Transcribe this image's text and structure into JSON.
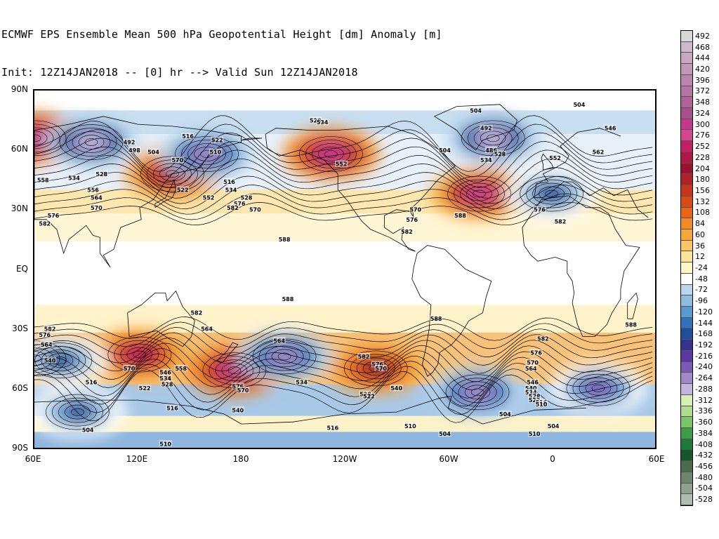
{
  "title": {
    "line1": "ECMWF EPS Ensemble Mean 500 hPa Geopotential Height [dm] Anomaly [m]",
    "line2": "Init: 12Z14JAN2018 -- [0] hr --> Valid Sun 12Z14JAN2018"
  },
  "latitude_labels": [
    "90N",
    "60N",
    "30N",
    "EQ",
    "30S",
    "60S",
    "90S"
  ],
  "longitude_labels": [
    "60E",
    "120E",
    "180",
    "120W",
    "60W",
    "0",
    "60E"
  ],
  "colorbar": {
    "labels": [
      "492",
      "468",
      "444",
      "420",
      "396",
      "372",
      "348",
      "324",
      "300",
      "276",
      "252",
      "228",
      "204",
      "180",
      "156",
      "132",
      "108",
      "84",
      "60",
      "36",
      "12",
      "-24",
      "-48",
      "-72",
      "-96",
      "-120",
      "-144",
      "-168",
      "-192",
      "-216",
      "-240",
      "-264",
      "-288",
      "-312",
      "-336",
      "-360",
      "-384",
      "-408",
      "-432",
      "-456",
      "-480",
      "-504",
      "-528"
    ],
    "colors": [
      "#d8d8d8",
      "#ceb9c9",
      "#c8a8c0",
      "#c298b8",
      "#bb86ae",
      "#b574a4",
      "#b06398",
      "#a8508a",
      "#c13b8a",
      "#d4478e",
      "#c51f63",
      "#ad1844",
      "#9c1232",
      "#b02224",
      "#c8341c",
      "#d84a16",
      "#e8641a",
      "#f28a26",
      "#f6a83a",
      "#f9c662",
      "#fbe49a",
      "#fff7c6",
      "#ffffff",
      "#b8d6ee",
      "#8fbde0",
      "#5a9ad0",
      "#2f72b8",
      "#1f4f9c",
      "#36338c",
      "#5a3aa0",
      "#7a5ab4",
      "#a089c6",
      "#c2b6dc",
      "#d6eeb8",
      "#b0dc8e",
      "#7cc46a",
      "#3c9c4a",
      "#1e7a3a",
      "#14582c",
      "#4c6a4c",
      "#6e866e",
      "#8ea08e",
      "#b0bcb0"
    ]
  },
  "anomaly_features": [
    {
      "kind": "positive",
      "anomaly_m": 300,
      "lon": -128,
      "lat": 58
    },
    {
      "kind": "positive",
      "anomaly_m": 280,
      "lon": -42,
      "lat": 38
    },
    {
      "kind": "positive",
      "anomaly_m": 300,
      "lon": 60,
      "lat": 66
    },
    {
      "kind": "positive",
      "anomaly_m": 220,
      "lon": 140,
      "lat": 48
    },
    {
      "kind": "positive",
      "anomaly_m": 240,
      "lon": 121,
      "lat": -43
    },
    {
      "kind": "positive",
      "anomaly_m": 300,
      "lon": 176,
      "lat": -51
    },
    {
      "kind": "positive",
      "anomaly_m": 200,
      "lon": -102,
      "lat": -50
    },
    {
      "kind": "positive",
      "anomaly_m": 160,
      "lon": 60,
      "lat": -45
    },
    {
      "kind": "negative",
      "anomaly_m": -300,
      "lon": 93,
      "lat": 64
    },
    {
      "kind": "negative",
      "anomaly_m": -260,
      "lon": 160,
      "lat": 58
    },
    {
      "kind": "negative",
      "anomaly_m": -300,
      "lon": -34,
      "lat": 66
    },
    {
      "kind": "negative",
      "anomaly_m": -180,
      "lon": 0,
      "lat": 38
    },
    {
      "kind": "negative",
      "anomaly_m": -260,
      "lon": -155,
      "lat": -44
    },
    {
      "kind": "negative",
      "anomaly_m": -260,
      "lon": -43,
      "lat": -62
    },
    {
      "kind": "negative",
      "anomaly_m": -240,
      "lon": 27,
      "lat": -60
    },
    {
      "kind": "negative",
      "anomaly_m": -180,
      "lon": 85,
      "lat": -72
    },
    {
      "kind": "negative",
      "anomaly_m": -160,
      "lon": 75,
      "lat": -46
    }
  ],
  "contour_labels": [
    {
      "text": "528",
      "lon": -137,
      "lat": 75
    },
    {
      "text": "534",
      "lon": -133,
      "lat": 74
    },
    {
      "text": "492",
      "lon": 115,
      "lat": 64
    },
    {
      "text": "498",
      "lon": 118,
      "lat": 60
    },
    {
      "text": "504",
      "lon": 129,
      "lat": 59
    },
    {
      "text": "516",
      "lon": 149,
      "lat": 67
    },
    {
      "text": "522",
      "lon": 166,
      "lat": 65
    },
    {
      "text": "510",
      "lon": 165,
      "lat": 59
    },
    {
      "text": "570",
      "lon": 143,
      "lat": 55
    },
    {
      "text": "516",
      "lon": 173,
      "lat": 44
    },
    {
      "text": "534",
      "lon": 174,
      "lat": 40
    },
    {
      "text": "522",
      "lon": 146,
      "lat": 40
    },
    {
      "text": "552",
      "lon": 161,
      "lat": 36
    },
    {
      "text": "576",
      "lon": 179,
      "lat": 33
    },
    {
      "text": "582",
      "lon": 175,
      "lat": 31
    },
    {
      "text": "528",
      "lon": -177,
      "lat": 36
    },
    {
      "text": "570",
      "lon": -172,
      "lat": 30
    },
    {
      "text": "534",
      "lon": 83,
      "lat": 46
    },
    {
      "text": "528",
      "lon": 99,
      "lat": 48
    },
    {
      "text": "558",
      "lon": 65,
      "lat": 45
    },
    {
      "text": "556",
      "lon": 94,
      "lat": 40
    },
    {
      "text": "564",
      "lon": 96,
      "lat": 36
    },
    {
      "text": "570",
      "lon": 96,
      "lat": 31
    },
    {
      "text": "576",
      "lon": 71,
      "lat": 27
    },
    {
      "text": "582",
      "lon": 66,
      "lat": 23
    },
    {
      "text": "588",
      "lon": -155,
      "lat": 15
    },
    {
      "text": "552",
      "lon": -122,
      "lat": 53
    },
    {
      "text": "504",
      "lon": -44,
      "lat": 80
    },
    {
      "text": "492",
      "lon": -38,
      "lat": 71
    },
    {
      "text": "486",
      "lon": -35,
      "lat": 60
    },
    {
      "text": "528",
      "lon": -30,
      "lat": 58
    },
    {
      "text": "534",
      "lon": -38,
      "lat": 55
    },
    {
      "text": "504",
      "lon": -62,
      "lat": 60
    },
    {
      "text": "552",
      "lon": 2,
      "lat": 56
    },
    {
      "text": "576",
      "lon": -7,
      "lat": 30
    },
    {
      "text": "582",
      "lon": 5,
      "lat": 24
    },
    {
      "text": "588",
      "lon": -53,
      "lat": 27
    },
    {
      "text": "504",
      "lon": 16,
      "lat": 83
    },
    {
      "text": "546",
      "lon": 34,
      "lat": 71
    },
    {
      "text": "562",
      "lon": 27,
      "lat": 59
    },
    {
      "text": "570",
      "lon": -79,
      "lat": 30
    },
    {
      "text": "576",
      "lon": -81,
      "lat": 25
    },
    {
      "text": "582",
      "lon": -84,
      "lat": 19
    },
    {
      "text": "588",
      "lon": -153,
      "lat": -15
    },
    {
      "text": "588",
      "lon": -67,
      "lat": -25
    },
    {
      "text": "582",
      "lon": 154,
      "lat": -22
    },
    {
      "text": "564",
      "lon": 160,
      "lat": -30
    },
    {
      "text": "582",
      "lon": 69,
      "lat": -30
    },
    {
      "text": "576",
      "lon": 66,
      "lat": -33
    },
    {
      "text": "564",
      "lon": 67,
      "lat": -38
    },
    {
      "text": "540",
      "lon": 69,
      "lat": -46
    },
    {
      "text": "516",
      "lon": 93,
      "lat": -57
    },
    {
      "text": "570",
      "lon": 115,
      "lat": -50
    },
    {
      "text": "546",
      "lon": 136,
      "lat": -52
    },
    {
      "text": "534",
      "lon": 136,
      "lat": -55
    },
    {
      "text": "528",
      "lon": 137,
      "lat": -58
    },
    {
      "text": "522",
      "lon": 124,
      "lat": -60
    },
    {
      "text": "558",
      "lon": 145,
      "lat": -50
    },
    {
      "text": "516",
      "lon": 140,
      "lat": -70
    },
    {
      "text": "504",
      "lon": 91,
      "lat": -81
    },
    {
      "text": "510",
      "lon": 136,
      "lat": -88
    },
    {
      "text": "564",
      "lon": -158,
      "lat": -36
    },
    {
      "text": "576",
      "lon": 178,
      "lat": -59
    },
    {
      "text": "570",
      "lon": 181,
      "lat": -61
    },
    {
      "text": "540",
      "lon": 178,
      "lat": -71
    },
    {
      "text": "534",
      "lon": -145,
      "lat": -57
    },
    {
      "text": "582",
      "lon": -109,
      "lat": -44
    },
    {
      "text": "576",
      "lon": -101,
      "lat": -48
    },
    {
      "text": "570",
      "lon": -99,
      "lat": -50
    },
    {
      "text": "528",
      "lon": -108,
      "lat": -63
    },
    {
      "text": "522",
      "lon": -106,
      "lat": -64
    },
    {
      "text": "540",
      "lon": -90,
      "lat": -60
    },
    {
      "text": "516",
      "lon": -127,
      "lat": -80
    },
    {
      "text": "510",
      "lon": -82,
      "lat": -79
    },
    {
      "text": "504",
      "lon": -62,
      "lat": -83
    },
    {
      "text": "504",
      "lon": -27,
      "lat": -73
    },
    {
      "text": "582",
      "lon": -5,
      "lat": -35
    },
    {
      "text": "576",
      "lon": -9,
      "lat": -42
    },
    {
      "text": "570",
      "lon": -11,
      "lat": -47
    },
    {
      "text": "564",
      "lon": -12,
      "lat": -50
    },
    {
      "text": "546",
      "lon": -11,
      "lat": -57
    },
    {
      "text": "540",
      "lon": -12,
      "lat": -60
    },
    {
      "text": "534",
      "lon": -12,
      "lat": -62
    },
    {
      "text": "528",
      "lon": -10,
      "lat": -64
    },
    {
      "text": "522",
      "lon": -10,
      "lat": -66
    },
    {
      "text": "516",
      "lon": -6,
      "lat": -67
    },
    {
      "text": "510",
      "lon": -6,
      "lat": -68
    },
    {
      "text": "504",
      "lon": 1,
      "lat": -79
    },
    {
      "text": "510",
      "lon": -10,
      "lat": -83
    },
    {
      "text": "588",
      "lon": 46,
      "lat": -28
    }
  ]
}
